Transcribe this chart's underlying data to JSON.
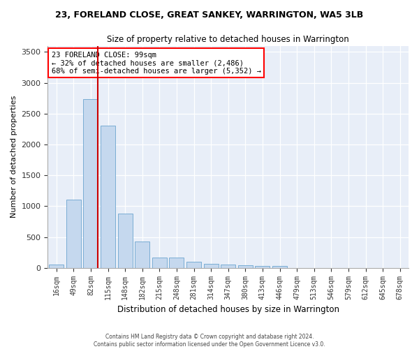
{
  "title": "23, FORELAND CLOSE, GREAT SANKEY, WARRINGTON, WA5 3LB",
  "subtitle": "Size of property relative to detached houses in Warrington",
  "xlabel": "Distribution of detached houses by size in Warrington",
  "ylabel": "Number of detached properties",
  "bar_color": "#c5d8ee",
  "bar_edge_color": "#7aadd4",
  "bg_color": "#e8eef8",
  "grid_color": "#ffffff",
  "categories": [
    "16sqm",
    "49sqm",
    "82sqm",
    "115sqm",
    "148sqm",
    "182sqm",
    "215sqm",
    "248sqm",
    "281sqm",
    "314sqm",
    "347sqm",
    "380sqm",
    "413sqm",
    "446sqm",
    "479sqm",
    "513sqm",
    "546sqm",
    "579sqm",
    "612sqm",
    "645sqm",
    "678sqm"
  ],
  "values": [
    55,
    1100,
    2730,
    2300,
    880,
    430,
    170,
    165,
    95,
    65,
    55,
    40,
    30,
    25,
    0,
    0,
    0,
    0,
    0,
    0,
    0
  ],
  "ylim": [
    0,
    3600
  ],
  "yticks": [
    0,
    500,
    1000,
    1500,
    2000,
    2500,
    3000,
    3500
  ],
  "vline_bar_idx": 2,
  "vline_color": "#cc0000",
  "ann_line1": "23 FORELAND CLOSE: 99sqm",
  "ann_line2": "← 32% of detached houses are smaller (2,486)",
  "ann_line3": "68% of semi-detached houses are larger (5,352) →",
  "footer": "Contains HM Land Registry data © Crown copyright and database right 2024.\nContains public sector information licensed under the Open Government Licence v3.0."
}
